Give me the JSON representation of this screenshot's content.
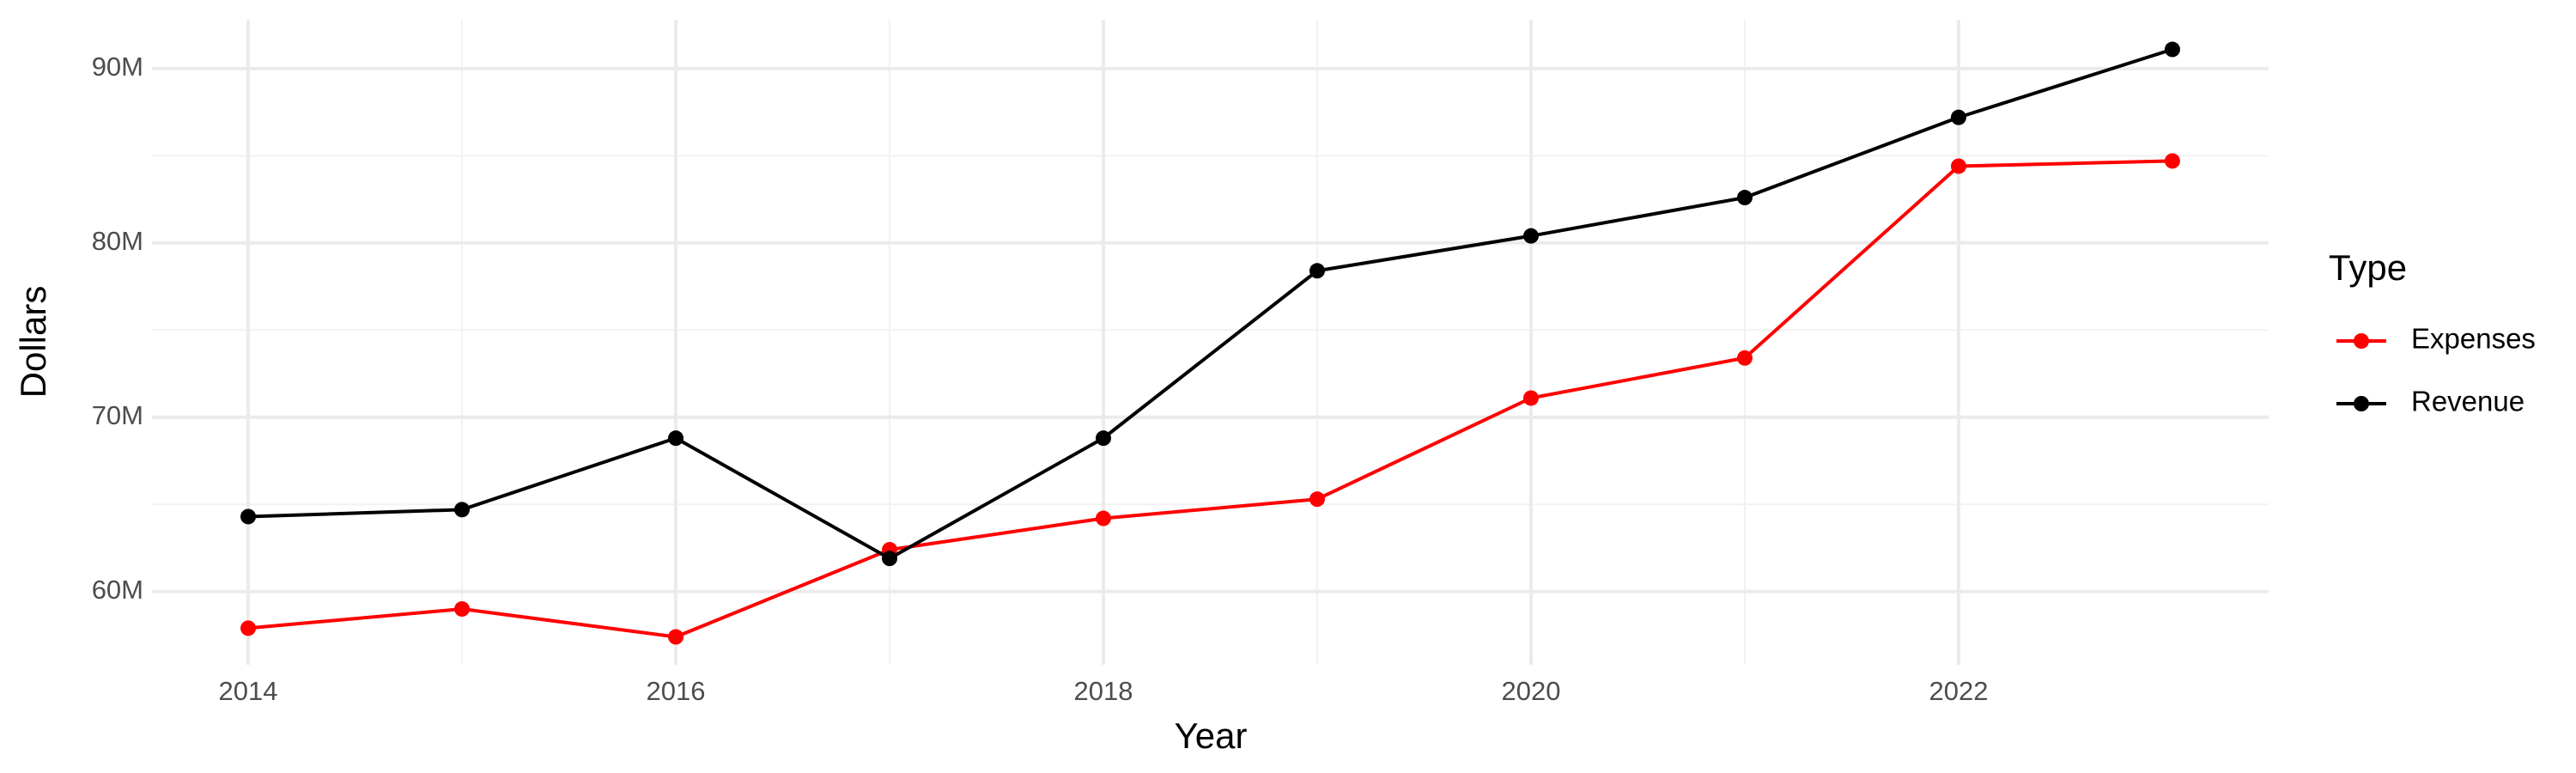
{
  "chart_data": {
    "type": "line",
    "x_label": "Year",
    "y_label": "Dollars",
    "legend_title": "Type",
    "x": [
      2014,
      2015,
      2016,
      2017,
      2018,
      2019,
      2020,
      2021,
      2022,
      2023
    ],
    "series": [
      {
        "name": "Expenses",
        "color": "#ff0000",
        "values": [
          57900000,
          59000000,
          57400000,
          62400000,
          64200000,
          65300000,
          71100000,
          73400000,
          84400000,
          84700000
        ]
      },
      {
        "name": "Revenue",
        "color": "#000000",
        "values": [
          64300000,
          64700000,
          68800000,
          61900000,
          68800000,
          78400000,
          80400000,
          82600000,
          87200000,
          91100000
        ]
      }
    ],
    "xlim": [
      2013.55,
      2023.45
    ],
    "xticks": [
      2014,
      2016,
      2018,
      2020,
      2022
    ],
    "ylim": [
      55800000,
      92800000
    ],
    "yticks": [
      {
        "value": 60000000,
        "label": "60M"
      },
      {
        "value": 70000000,
        "label": "70M"
      },
      {
        "value": 80000000,
        "label": "80M"
      },
      {
        "value": 90000000,
        "label": "90M"
      }
    ],
    "grid": true,
    "legend": "right"
  }
}
